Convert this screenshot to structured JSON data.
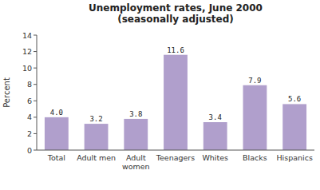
{
  "chart_data": {
    "type": "bar",
    "title": "Unemployment rates, June 2000\n(seasonally adjusted)",
    "ylabel": "Percent",
    "categories": [
      "Total",
      "Adult men",
      "Adult\nwomen",
      "Teenagers",
      "Whites",
      "Blacks",
      "Hispanics"
    ],
    "values": [
      4.0,
      3.2,
      3.8,
      11.6,
      3.4,
      7.9,
      5.6
    ],
    "value_labels": [
      "4.0",
      "3.2",
      "3.8",
      "11.6",
      "3.4",
      "7.9",
      "5.6"
    ],
    "color": "#b09fcc",
    "ylim": [
      0,
      14
    ],
    "yticks": [
      0,
      2,
      4,
      6,
      8,
      10,
      12,
      14
    ],
    "grid": false,
    "data_labels": true
  }
}
